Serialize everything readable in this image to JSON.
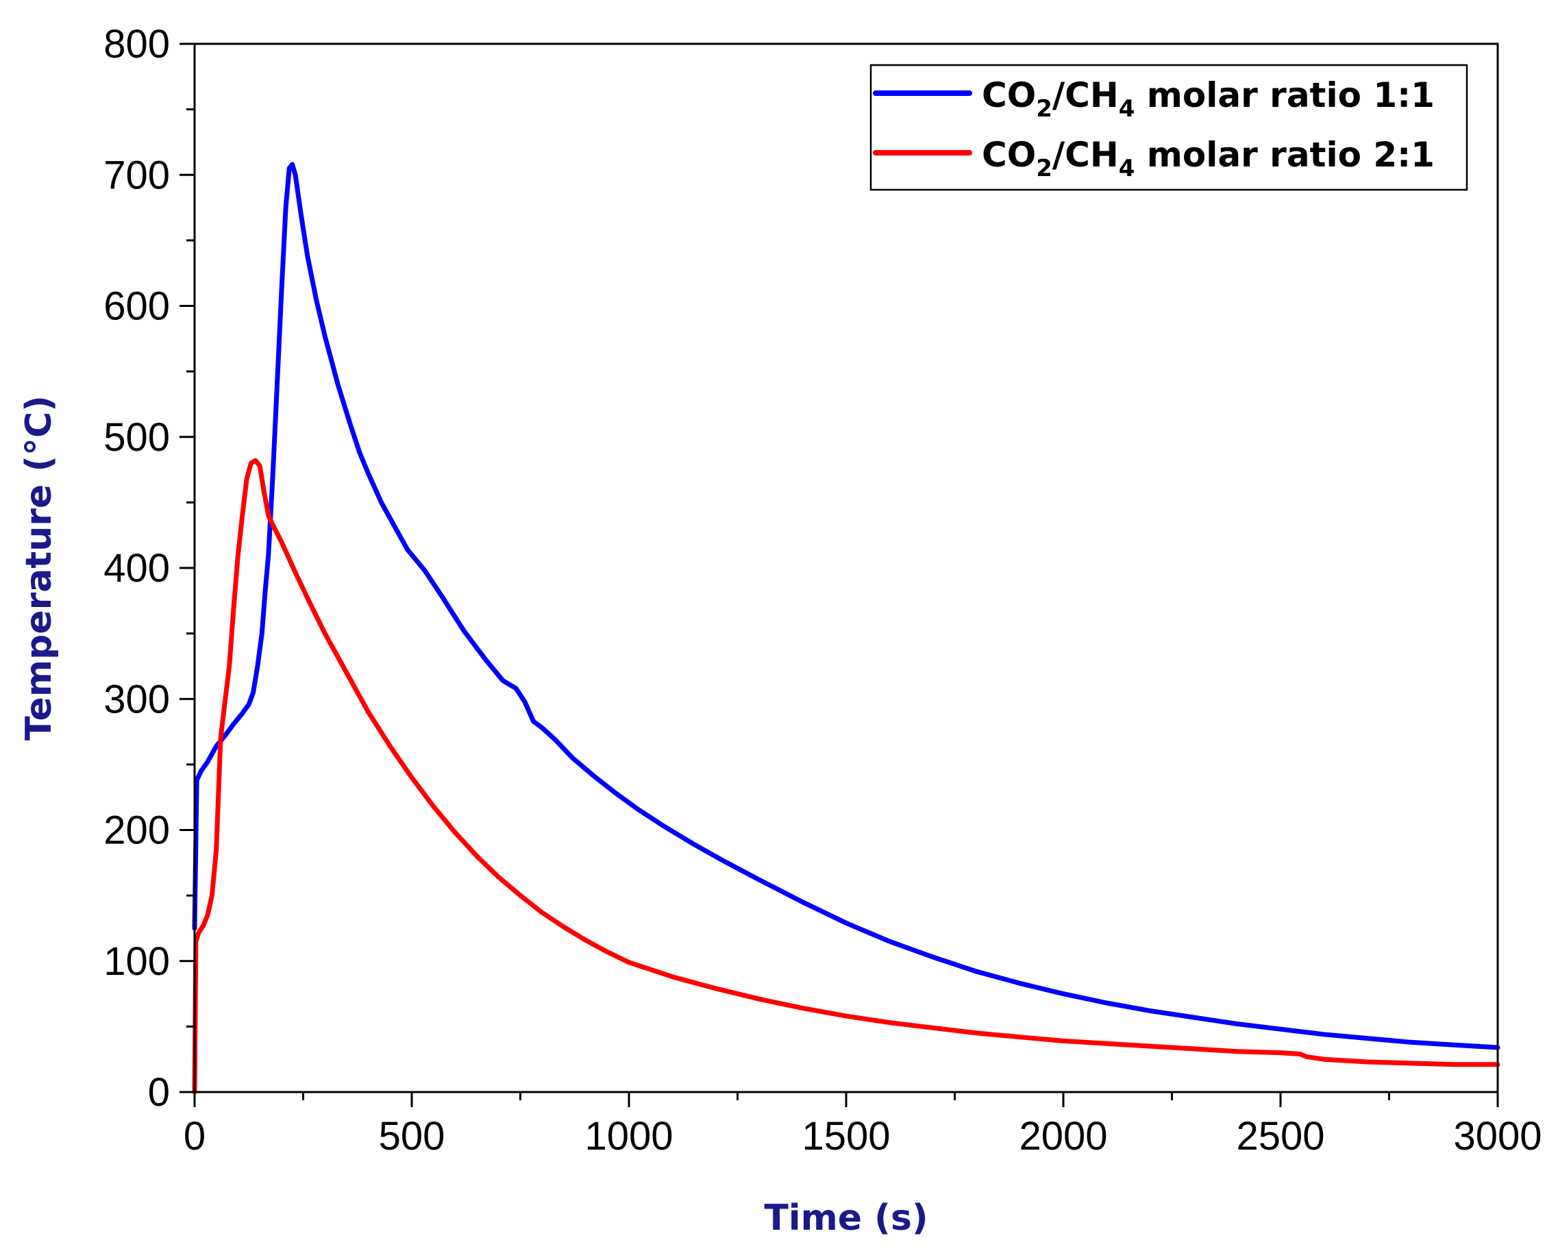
{
  "chart_data": {
    "type": "line",
    "title": "",
    "xlabel": "Time (s)",
    "ylabel": "Temperature (°C)",
    "xlim": [
      0,
      3000
    ],
    "ylim": [
      0,
      800
    ],
    "xticks": [
      0,
      500,
      1000,
      1500,
      2000,
      2500,
      3000
    ],
    "yticks": [
      0,
      100,
      200,
      300,
      400,
      500,
      600,
      700,
      800
    ],
    "axis_title_color": "#1a1a8c",
    "grid": false,
    "legend_position": "top-right",
    "series": [
      {
        "name": "CO2/CH4 molar ratio 1:1",
        "legend": {
          "pre": "CO",
          "sub1": "2",
          "mid": "/CH",
          "sub2": "4",
          "post": " molar ratio 1:1"
        },
        "color": "#0000ff",
        "points": [
          [
            0,
            125
          ],
          [
            5,
            238
          ],
          [
            15,
            245
          ],
          [
            30,
            252
          ],
          [
            50,
            264
          ],
          [
            70,
            272
          ],
          [
            90,
            281
          ],
          [
            110,
            289
          ],
          [
            125,
            296
          ],
          [
            135,
            305
          ],
          [
            145,
            325
          ],
          [
            155,
            350
          ],
          [
            162,
            380
          ],
          [
            170,
            410
          ],
          [
            180,
            470
          ],
          [
            190,
            540
          ],
          [
            200,
            610
          ],
          [
            210,
            675
          ],
          [
            218,
            705
          ],
          [
            225,
            708
          ],
          [
            232,
            700
          ],
          [
            245,
            670
          ],
          [
            260,
            638
          ],
          [
            280,
            605
          ],
          [
            300,
            577
          ],
          [
            330,
            540
          ],
          [
            360,
            508
          ],
          [
            380,
            488
          ],
          [
            400,
            472
          ],
          [
            430,
            450
          ],
          [
            460,
            432
          ],
          [
            490,
            414
          ],
          [
            530,
            398
          ],
          [
            570,
            378
          ],
          [
            620,
            352
          ],
          [
            670,
            330
          ],
          [
            710,
            314
          ],
          [
            740,
            308
          ],
          [
            760,
            298
          ],
          [
            780,
            283
          ],
          [
            800,
            278
          ],
          [
            830,
            269
          ],
          [
            870,
            255
          ],
          [
            920,
            241
          ],
          [
            970,
            228
          ],
          [
            1020,
            216
          ],
          [
            1080,
            203
          ],
          [
            1150,
            189
          ],
          [
            1220,
            176
          ],
          [
            1300,
            162
          ],
          [
            1400,
            145
          ],
          [
            1500,
            129
          ],
          [
            1600,
            115
          ],
          [
            1700,
            103
          ],
          [
            1800,
            92
          ],
          [
            1900,
            83
          ],
          [
            2000,
            75
          ],
          [
            2100,
            68
          ],
          [
            2200,
            62
          ],
          [
            2300,
            57
          ],
          [
            2400,
            52
          ],
          [
            2500,
            48
          ],
          [
            2600,
            44
          ],
          [
            2700,
            41
          ],
          [
            2800,
            38
          ],
          [
            2900,
            36
          ],
          [
            3000,
            34
          ]
        ]
      },
      {
        "name": "CO2/CH4 molar ratio 2:1",
        "legend": {
          "pre": "CO",
          "sub1": "2",
          "mid": "/CH",
          "sub2": "4",
          "post": " molar ratio 2:1"
        },
        "color": "#ff0000",
        "points": [
          [
            0,
            0
          ],
          [
            3,
            115
          ],
          [
            10,
            122
          ],
          [
            20,
            127
          ],
          [
            30,
            135
          ],
          [
            40,
            150
          ],
          [
            50,
            185
          ],
          [
            60,
            270
          ],
          [
            70,
            298
          ],
          [
            80,
            325
          ],
          [
            90,
            370
          ],
          [
            100,
            410
          ],
          [
            110,
            440
          ],
          [
            120,
            468
          ],
          [
            130,
            480
          ],
          [
            140,
            482
          ],
          [
            150,
            478
          ],
          [
            160,
            458
          ],
          [
            170,
            440
          ],
          [
            180,
            433
          ],
          [
            200,
            420
          ],
          [
            230,
            398
          ],
          [
            260,
            377
          ],
          [
            300,
            350
          ],
          [
            350,
            320
          ],
          [
            400,
            290
          ],
          [
            450,
            264
          ],
          [
            500,
            240
          ],
          [
            550,
            218
          ],
          [
            600,
            198
          ],
          [
            650,
            180
          ],
          [
            700,
            164
          ],
          [
            750,
            150
          ],
          [
            800,
            137
          ],
          [
            850,
            126
          ],
          [
            900,
            116
          ],
          [
            950,
            107
          ],
          [
            1000,
            99
          ],
          [
            1100,
            88
          ],
          [
            1200,
            79
          ],
          [
            1300,
            71
          ],
          [
            1400,
            64
          ],
          [
            1500,
            58
          ],
          [
            1600,
            53
          ],
          [
            1700,
            49
          ],
          [
            1800,
            45
          ],
          [
            1900,
            42
          ],
          [
            2000,
            39
          ],
          [
            2100,
            37
          ],
          [
            2200,
            35
          ],
          [
            2300,
            33
          ],
          [
            2400,
            31
          ],
          [
            2500,
            30
          ],
          [
            2545,
            29
          ],
          [
            2560,
            27
          ],
          [
            2600,
            25
          ],
          [
            2700,
            23
          ],
          [
            2800,
            22
          ],
          [
            2900,
            21
          ],
          [
            3000,
            21
          ]
        ]
      }
    ]
  }
}
